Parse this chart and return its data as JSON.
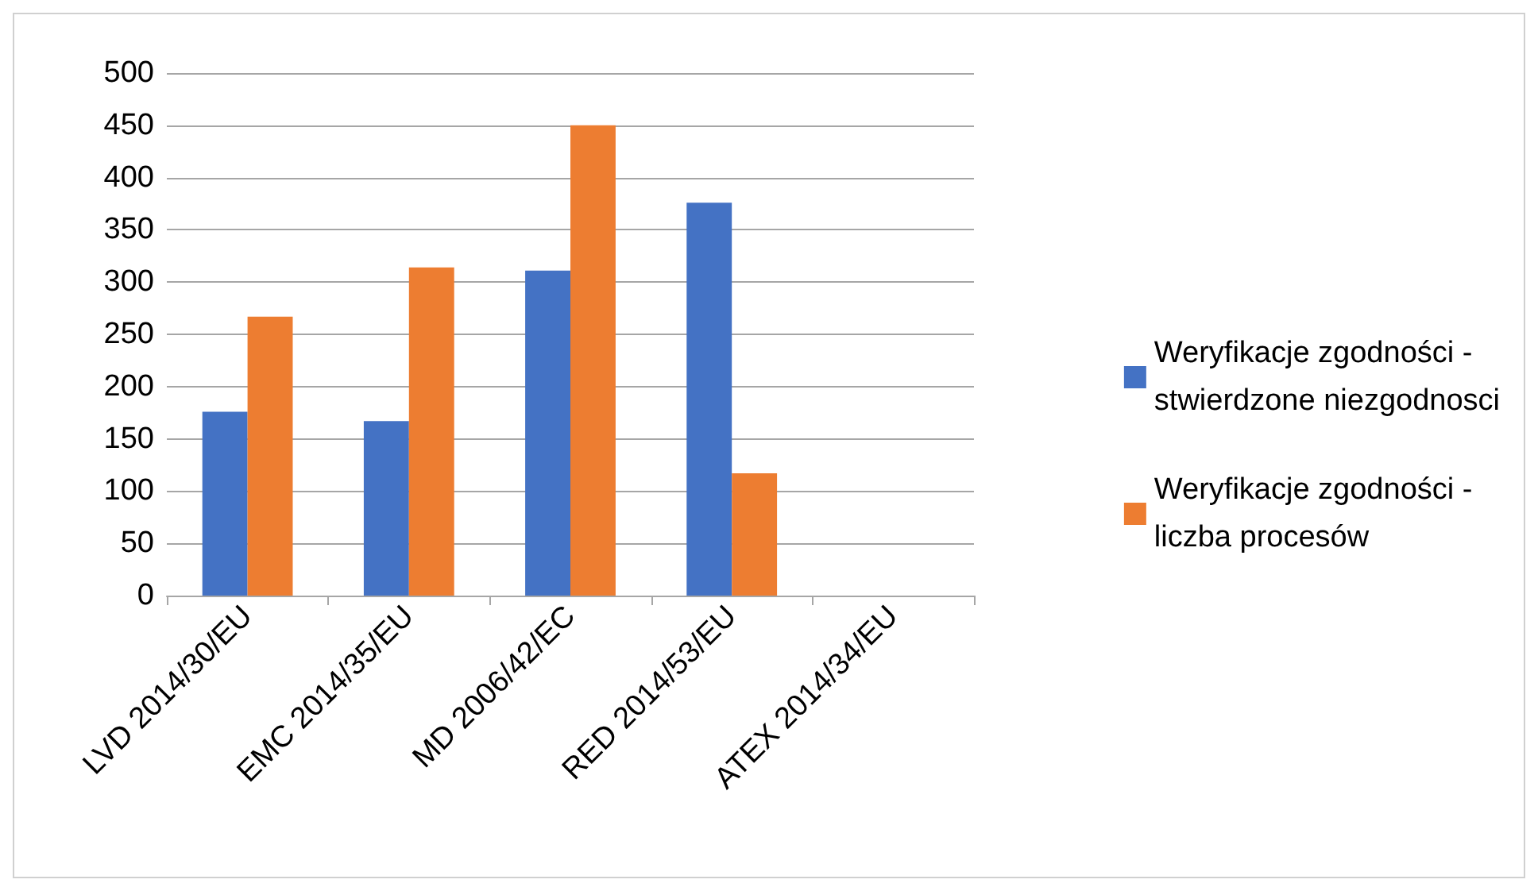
{
  "chart_data": {
    "type": "bar",
    "categories": [
      "LVD 2014/30/EU",
      "EMC 2014/35/EU",
      "MD 2006/42/EC",
      "RED 2014/53/EU",
      "ATEX 2014/34/EU"
    ],
    "series": [
      {
        "name": "Weryfikacje zgodności - stwierdzone niezgodnosci",
        "color": "#4472c4",
        "values": [
          176,
          167,
          311,
          376,
          0
        ]
      },
      {
        "name": "Weryfikacje zgodności - liczba procesów",
        "color": "#ed7d31",
        "values": [
          267,
          314,
          450,
          117,
          0
        ]
      }
    ],
    "ylim": [
      0,
      500
    ],
    "yticks": [
      0,
      50,
      100,
      150,
      200,
      250,
      300,
      350,
      400,
      450,
      500
    ],
    "grid": "y",
    "legend": "right"
  }
}
